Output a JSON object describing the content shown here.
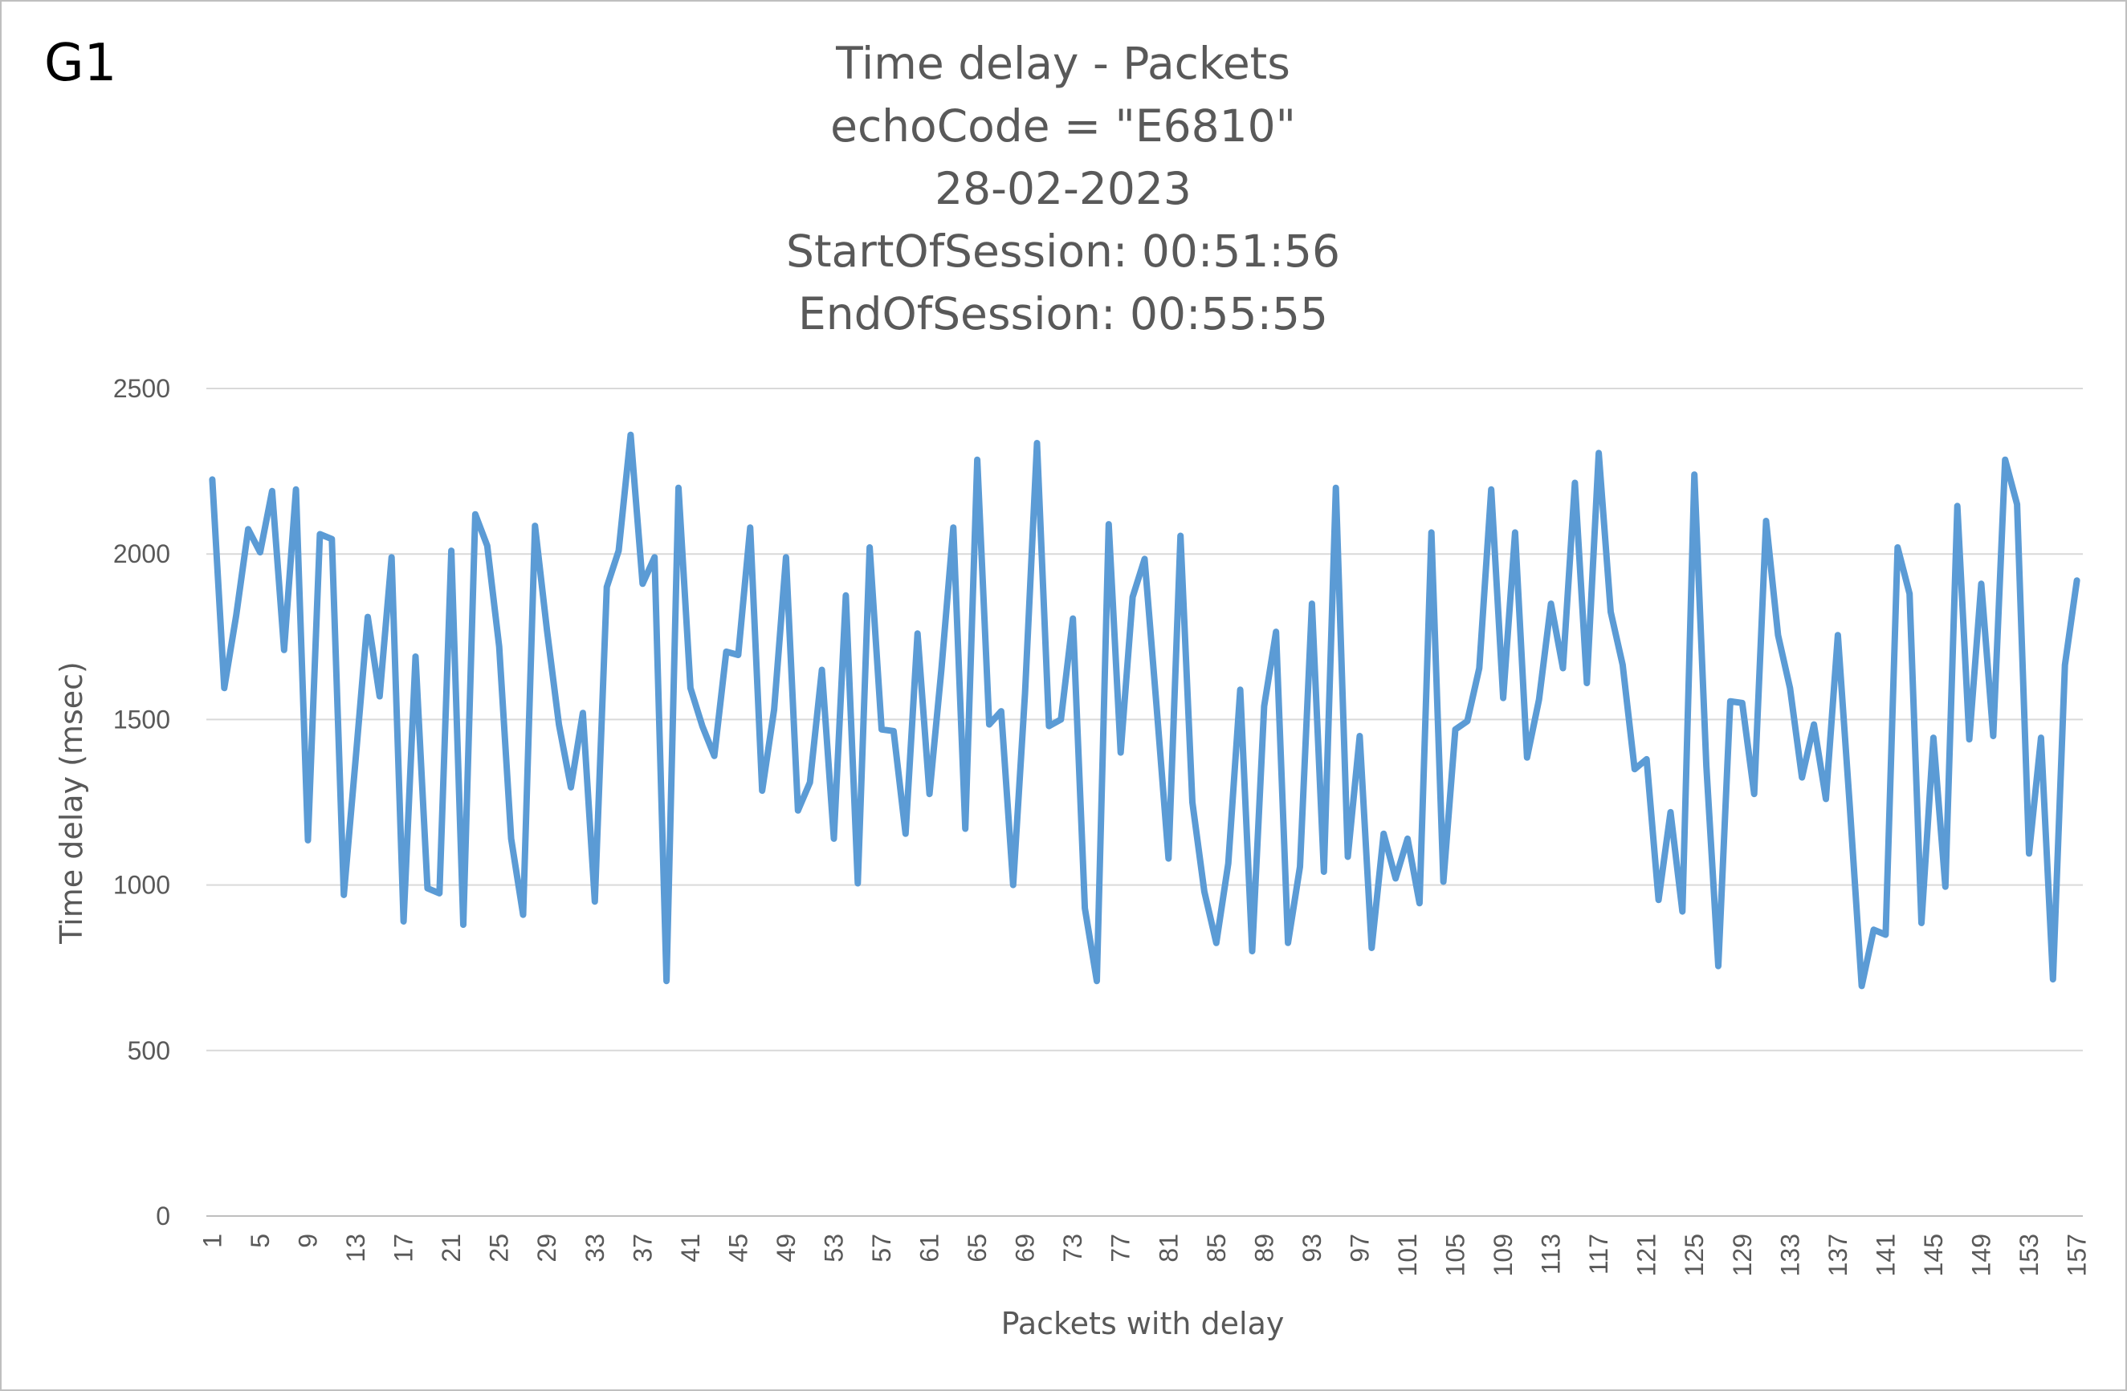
{
  "corner_label": "G1",
  "colors": {
    "series": "#5b9bd5",
    "text": "#595959",
    "grid": "#d9d9d9"
  },
  "chart_data": {
    "type": "line",
    "title_lines": [
      "Time delay - Packets",
      "echoCode = \"E6810\"",
      "28-02-2023",
      "StartOfSession: 00:51:56",
      "EndOfSession: 00:55:55"
    ],
    "xlabel": "Packets with delay",
    "ylabel": "Time delay (msec)",
    "ylim": [
      0,
      2500
    ],
    "yticks": [
      "0",
      "500",
      "1000",
      "1500",
      "2000",
      "2500"
    ],
    "xtick_step": 4,
    "legend": "none",
    "grid": "horizontal",
    "series": [
      {
        "values": [
          2225,
          1595,
          1815,
          2075,
          2005,
          2190,
          1710,
          2195,
          1135,
          2060,
          2045,
          970,
          1385,
          1810,
          1570,
          1990,
          890,
          1690,
          990,
          975,
          2010,
          880,
          2120,
          2025,
          1720,
          1140,
          910,
          2085,
          1770,
          1485,
          1295,
          1520,
          950,
          1900,
          2010,
          2360,
          1910,
          1990,
          710,
          2200,
          1595,
          1480,
          1390,
          1705,
          1695,
          2080,
          1285,
          1530,
          1990,
          1225,
          1310,
          1650,
          1140,
          1875,
          1005,
          2020,
          1470,
          1465,
          1155,
          1760,
          1275,
          1650,
          2080,
          1170,
          2285,
          1485,
          1525,
          1000,
          1580,
          2335,
          1480,
          1500,
          1805,
          930,
          710,
          2090,
          1400,
          1870,
          1985,
          1540,
          1080,
          2055,
          1250,
          980,
          825,
          1065,
          1590,
          800,
          1540,
          1765,
          825,
          1055,
          1850,
          1040,
          2200,
          1085,
          1450,
          810,
          1155,
          1020,
          1140,
          945,
          2065,
          1010,
          1470,
          1495,
          1655,
          2195,
          1565,
          2065,
          1385,
          1560,
          1850,
          1655,
          2215,
          1610,
          2305,
          1825,
          1665,
          1350,
          1380,
          955,
          1220,
          920,
          2240,
          1360,
          755,
          1555,
          1550,
          1275,
          2100,
          1755,
          1595,
          1325,
          1485,
          1260,
          1755,
          1240,
          695,
          865,
          850,
          2020,
          1880,
          885,
          1445,
          995,
          2145,
          1440,
          1910,
          1450,
          2285,
          2150,
          1095,
          1445,
          715,
          1665,
          1920
        ]
      }
    ]
  }
}
